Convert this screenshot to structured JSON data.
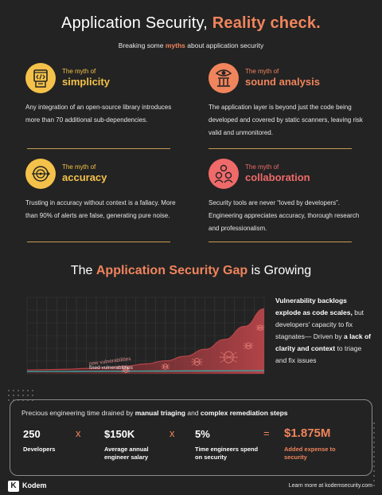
{
  "header": {
    "title_pre": "Application Security, ",
    "title_accent": "Reality check.",
    "subtitle_pre": "Breaking some ",
    "subtitle_accent": "myths",
    "subtitle_post": " about application security"
  },
  "myths": [
    {
      "pre": "The myth of",
      "name": "simplicity",
      "icon": "code-window-icon",
      "color": "#f4c24a",
      "body": "Any integration of an open-source library introduces more than 70 additional sub-dependencies."
    },
    {
      "pre": "The myth of",
      "name": "sound analysis",
      "icon": "eye-pillar-icon",
      "color": "#f0845c",
      "body": "The application layer is beyond just the code being developed and covered by static scanners, leaving risk valid and unmonitored."
    },
    {
      "pre": "The myth of",
      "name": "accuracy",
      "icon": "target-arrow-icon",
      "color": "#f4c24a",
      "body": "Trusting in accuracy without context is a fallacy. More than 90% of alerts are false, generating pure noise."
    },
    {
      "pre": "The myth of",
      "name": "collaboration",
      "icon": "team-icon",
      "color": "#f06a6a",
      "body": "Security tools are never “loved by developers”. Engineering appreciates accuracy, thorough research and professionalism."
    }
  ],
  "gap": {
    "title_pre": "The ",
    "title_accent": "Application Security Gap",
    "title_post": " is Growing",
    "text_b1": "Vulnerability backlogs explode as code scales,",
    "text_1": " but developers' capacity to fix stagnates— Driven by ",
    "text_b2": "a lack of clarity and context",
    "text_2": " to triage and fix issues"
  },
  "chart_data": {
    "type": "area",
    "series": [
      {
        "name": "new vulnerabilities",
        "color": "#b8454a",
        "values": [
          5,
          5.5,
          6,
          7,
          8,
          10,
          13,
          17,
          23,
          32,
          45,
          62,
          85
        ]
      },
      {
        "name": "fixed vulnerabilities",
        "color": "#3fa3a0",
        "values": [
          3,
          3.1,
          3.2,
          3.3,
          3.4,
          3.5,
          3.6,
          3.7,
          3.8,
          3.9,
          4,
          4.1,
          4.2
        ]
      }
    ],
    "ylim": [
      0,
      100
    ],
    "grid": true
  },
  "calc": {
    "head_pre": "Precious engineering time drained by ",
    "head_b1": "manual triaging",
    "head_mid": " and ",
    "head_b2": "complex remediation steps",
    "items": [
      {
        "value": "250",
        "label": "Developers"
      },
      {
        "value": "$150K",
        "label": "Average annual engineer salary"
      },
      {
        "value": "5%",
        "label": "Time engineers spend on security"
      },
      {
        "value": "$1.875M",
        "label": "Added expense to security"
      }
    ],
    "op_times": "x",
    "op_equals": "="
  },
  "footer": {
    "logo_mark": "K",
    "logo_text": "Kodem",
    "link": "Learn more at kodemsecurity.com"
  }
}
